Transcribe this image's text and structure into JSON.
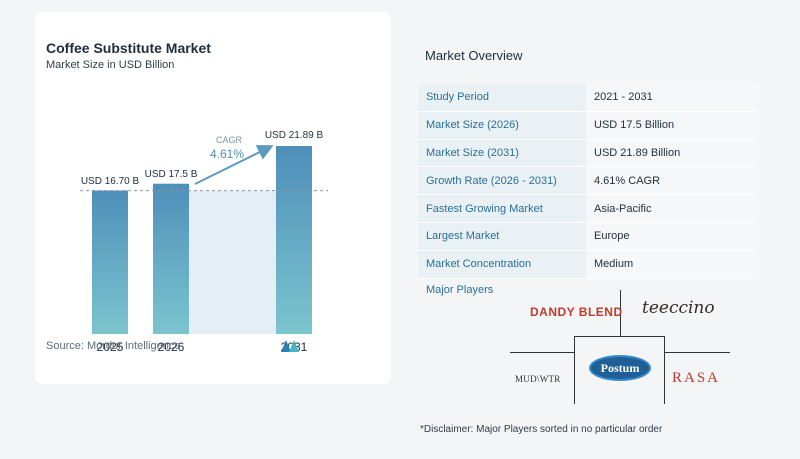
{
  "chart_data": {
    "type": "bar",
    "title": "Coffee Substitute Market",
    "subtitle": "Market Size in USD Billion",
    "categories": [
      "2025",
      "2026",
      "2031"
    ],
    "values": [
      16.7,
      17.5,
      21.89
    ],
    "value_labels": [
      "USD 16.70 B",
      "USD 17.5 B",
      "USD 21.89 B"
    ],
    "annotation": {
      "label": "CAGR",
      "value": "4.61%"
    },
    "colors": {
      "bar_top": "#4e8fb9",
      "bar_bottom": "#7cc4cf",
      "band": "#e6eef5",
      "dashed": "#8a96a3",
      "arrow": "#5b9abd"
    }
  },
  "source": "Source: Mordor Intelligence",
  "overview": {
    "title": "Market Overview",
    "rows": [
      {
        "key": "Study Period",
        "value": "2021 - 2031"
      },
      {
        "key": "Market Size (2026)",
        "value": "USD 17.5 Billion"
      },
      {
        "key": "Market Size (2031)",
        "value": "USD 21.89 Billion"
      },
      {
        "key": "Growth Rate (2026 - 2031)",
        "value": "4.61% CAGR"
      },
      {
        "key": "Fastest Growing Market",
        "value": "Asia-Pacific"
      },
      {
        "key": "Largest Market",
        "value": "Europe"
      },
      {
        "key": "Market Concentration",
        "value": "Medium"
      }
    ]
  },
  "players": {
    "label": "Major Players",
    "logos": {
      "dandy": "DANDY BLEND",
      "teeccino": "teeccino",
      "mudwtr": "MUD\\WTR",
      "postum": "Postum",
      "rasa": "RASA"
    }
  },
  "disclaimer": "*Disclaimer: Major Players sorted in no particular order"
}
